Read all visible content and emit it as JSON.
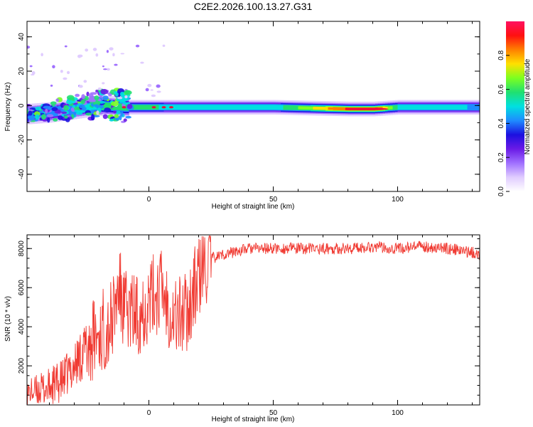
{
  "title": "C2E2.2026.100.13.27.G31",
  "colors": {
    "snr_line": "#f03a32",
    "signal_core": "#e8123c",
    "colormap": [
      "#ffffff",
      "#e0ccff",
      "#a070ff",
      "#6a1ae6",
      "#1c10e0",
      "#1e8cff",
      "#00e0e0",
      "#20e070",
      "#7cff20",
      "#ffe000",
      "#ff8000",
      "#ff1010",
      "#ff1060"
    ]
  },
  "chart_data": [
    {
      "type": "heatmap",
      "title": "C2E2.2026.100.13.27.G31",
      "xlabel": "Height of straight line (km)",
      "ylabel": "Frequency (Hz)",
      "xlim": [
        -49,
        133
      ],
      "ylim": [
        -50,
        49
      ],
      "xticks": [
        0,
        50,
        100
      ],
      "xtick_labels": [
        "0",
        "50",
        "100"
      ],
      "yticks": [
        -40,
        -20,
        0,
        20,
        40
      ],
      "ytick_labels": [
        "-40",
        "-20",
        "0",
        "20",
        "40"
      ],
      "colorbar": {
        "label": "Normalized spectral amplitude",
        "range": [
          0.0,
          1.0
        ],
        "ticks": [
          0.0,
          0.2,
          0.4,
          0.6,
          0.8
        ],
        "tick_labels": [
          "0.0",
          "0.2",
          "0.4",
          "0.6",
          "0.8"
        ]
      },
      "signal_trace": {
        "x": [
          -49,
          -40,
          -30,
          -20,
          -10,
          0,
          20,
          50,
          80,
          90,
          100,
          133
        ],
        "freq": [
          -5,
          -4,
          -2,
          0,
          -1,
          -1,
          -1,
          -1,
          -2,
          -2,
          -1,
          -1
        ],
        "amplitude": [
          0.35,
          0.4,
          0.45,
          0.55,
          0.6,
          0.55,
          0.5,
          0.5,
          0.9,
          0.95,
          0.5,
          0.45
        ]
      }
    },
    {
      "type": "line",
      "xlabel": "Height of straight line (km)",
      "ylabel": "SNR (10 * v/v)",
      "xlim": [
        -49,
        133
      ],
      "ylim": [
        0,
        8700
      ],
      "xticks": [
        0,
        50,
        100
      ],
      "xtick_labels": [
        "0",
        "50",
        "100"
      ],
      "yticks": [
        2000,
        4000,
        6000,
        8000
      ],
      "ytick_labels": [
        "2000",
        "4000",
        "6000",
        "8000"
      ],
      "series": [
        {
          "name": "SNR",
          "x": [
            -49,
            -40,
            -35,
            -30,
            -25,
            -20,
            -15,
            -12,
            -10,
            -5,
            0,
            5,
            10,
            15,
            20,
            25,
            30,
            40,
            50,
            60,
            80,
            90,
            100,
            110,
            120,
            130,
            133
          ],
          "y": [
            600,
            900,
            1200,
            2000,
            3000,
            3600,
            4200,
            6000,
            4800,
            4600,
            5300,
            6000,
            4500,
            4700,
            6500,
            7500,
            7700,
            8000,
            8000,
            8000,
            8000,
            8100,
            8000,
            8100,
            8000,
            7800,
            7700
          ]
        }
      ]
    }
  ]
}
